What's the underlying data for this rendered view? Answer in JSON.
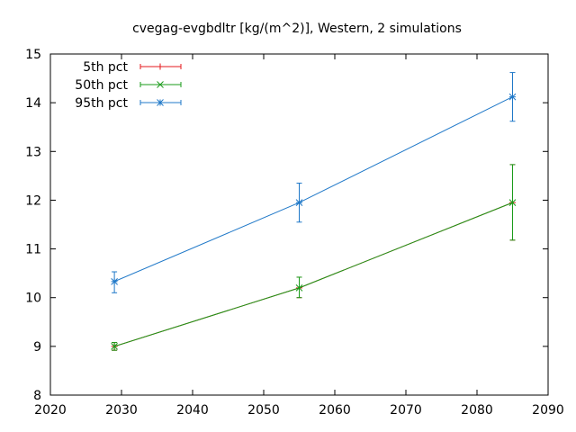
{
  "chart_data": {
    "type": "line",
    "title": "cvegag-evgbdltr [kg/(m^2)], Western, 2 simulations",
    "xlabel": "",
    "ylabel": "",
    "xlim": [
      2020,
      2090
    ],
    "ylim": [
      8,
      15
    ],
    "x_ticks": [
      2020,
      2030,
      2040,
      2050,
      2060,
      2070,
      2080,
      2090
    ],
    "y_ticks": [
      8,
      9,
      10,
      11,
      12,
      13,
      14,
      15
    ],
    "grid": false,
    "legend_position": "top-left",
    "x": [
      2029,
      2055,
      2085
    ],
    "series": [
      {
        "name": "5th pct",
        "color": "#e41a1c",
        "marker": "plus",
        "values": [
          9.0,
          10.2,
          11.95
        ],
        "err_low": [
          8.92,
          10.0,
          11.18
        ],
        "err_high": [
          9.08,
          10.42,
          12.73
        ]
      },
      {
        "name": "50th pct",
        "color": "#1a9b1a",
        "marker": "x",
        "values": [
          9.0,
          10.2,
          11.95
        ],
        "err_low": [
          8.92,
          10.0,
          11.18
        ],
        "err_high": [
          9.08,
          10.42,
          12.73
        ]
      },
      {
        "name": "95th pct",
        "color": "#1f78c8",
        "marker": "star",
        "values": [
          10.33,
          11.95,
          14.12
        ],
        "err_low": [
          10.1,
          11.55,
          13.62
        ],
        "err_high": [
          10.53,
          12.35,
          14.62
        ]
      }
    ]
  }
}
